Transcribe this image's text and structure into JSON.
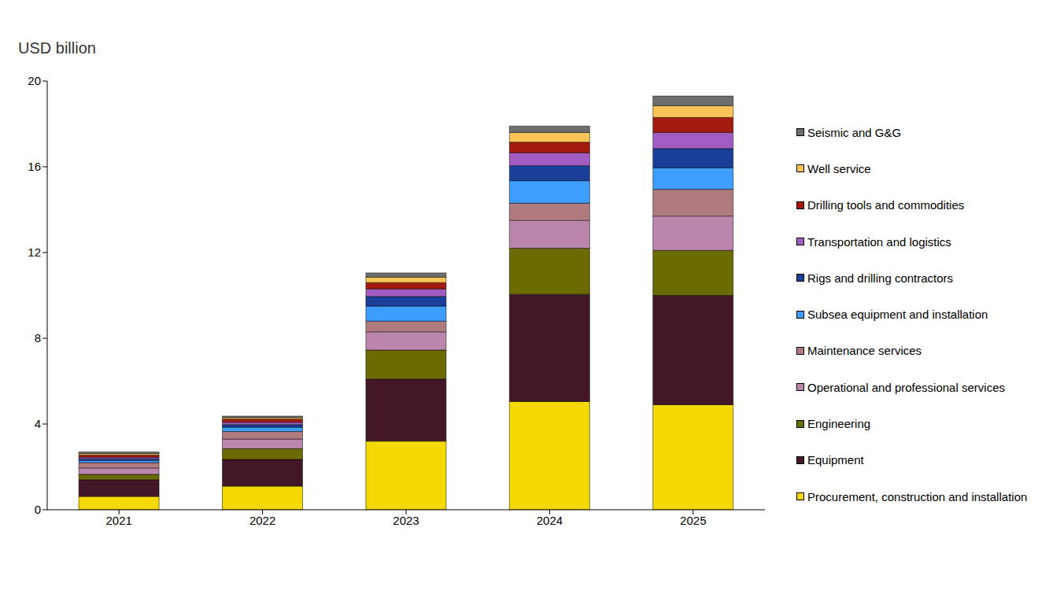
{
  "chart_data": {
    "type": "bar",
    "y_label": "USD billion",
    "categories": [
      "2021",
      "2022",
      "2023",
      "2024",
      "2025"
    ],
    "ylim": [
      0,
      20
    ],
    "yticks": [
      0,
      4,
      8,
      12,
      16,
      20
    ],
    "grid": false,
    "stacked": true,
    "legend": "right",
    "series": [
      {
        "name": "Procurement, construction and installation",
        "color": "#f5d800",
        "values": [
          0.62,
          1.1,
          3.2,
          5.05,
          4.9
        ]
      },
      {
        "name": "Equipment",
        "color": "#431728",
        "values": [
          0.78,
          1.25,
          2.9,
          5.0,
          5.1
        ]
      },
      {
        "name": "Engineering",
        "color": "#6b6b00",
        "values": [
          0.25,
          0.5,
          1.35,
          2.15,
          2.1
        ]
      },
      {
        "name": "Operational and professional services",
        "color": "#bb86ad",
        "values": [
          0.3,
          0.45,
          0.85,
          1.3,
          1.6
        ]
      },
      {
        "name": "Maintenance services",
        "color": "#b07b7e",
        "values": [
          0.25,
          0.35,
          0.5,
          0.8,
          1.25
        ]
      },
      {
        "name": "Subsea equipment and installation",
        "color": "#3d9eff",
        "values": [
          0.1,
          0.2,
          0.7,
          1.05,
          1.0
        ]
      },
      {
        "name": "Rigs and drilling contractors",
        "color": "#1a3f99",
        "values": [
          0.08,
          0.12,
          0.45,
          0.7,
          0.9
        ]
      },
      {
        "name": "Transportation and logistics",
        "color": "#a35cc2",
        "values": [
          0.07,
          0.11,
          0.35,
          0.6,
          0.75
        ]
      },
      {
        "name": "Drilling tools and commodities",
        "color": "#a31a0f",
        "values": [
          0.1,
          0.15,
          0.3,
          0.5,
          0.7
        ]
      },
      {
        "name": "Well service",
        "color": "#fcc456",
        "values": [
          0.07,
          0.07,
          0.25,
          0.45,
          0.55
        ]
      },
      {
        "name": "Seismic and G&G",
        "color": "#6e6e6e",
        "values": [
          0.08,
          0.07,
          0.2,
          0.3,
          0.45
        ]
      }
    ]
  }
}
